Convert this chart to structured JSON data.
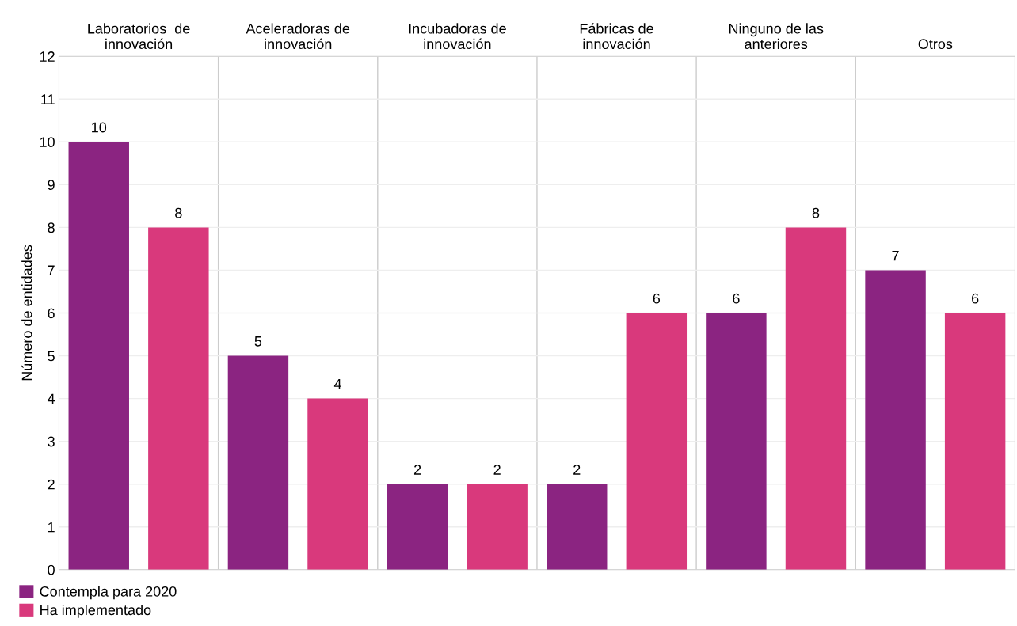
{
  "chart_data": {
    "type": "bar",
    "ylabel": "Número de entidades",
    "categories": [
      "Laboratorios  de\ninnovación",
      "Aceleradoras de\ninnovación",
      "Incubadoras de\ninnovación",
      "Fábricas de\ninnovación",
      "Ninguno de las\nanteriores",
      "Otros"
    ],
    "series": [
      {
        "name": "Contempla para 2020",
        "color": "#8b2481",
        "values": [
          10,
          5,
          2,
          2,
          6,
          7
        ]
      },
      {
        "name": "Ha implementado",
        "color": "#d9397c",
        "values": [
          8,
          4,
          2,
          6,
          8,
          6
        ]
      }
    ],
    "ylim": [
      0,
      12
    ],
    "yticks": [
      0,
      1,
      2,
      3,
      4,
      5,
      6,
      7,
      8,
      9,
      10,
      11,
      12
    ],
    "grid": "y",
    "legend": "bottom left",
    "data_labels": true
  }
}
